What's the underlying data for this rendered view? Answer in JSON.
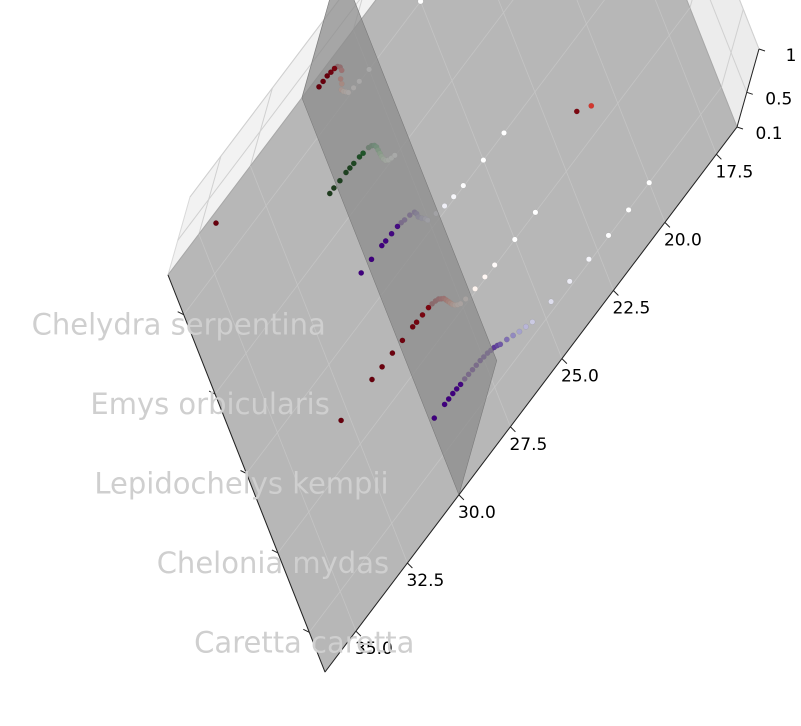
{
  "chart_data": {
    "type": "scatter",
    "projection": "3d",
    "title": "",
    "xlabel": "",
    "ylabel": "",
    "zlabel": "",
    "grid": true,
    "legend": "none",
    "x_ticks": [
      "17.5",
      "20.0",
      "22.5",
      "25.0",
      "27.5",
      "30.0",
      "32.5",
      "35.0"
    ],
    "z_ticks": [
      "0.1",
      "0.5",
      "1"
    ],
    "xlim": [
      16.5,
      36.5
    ],
    "zlim": [
      0.1,
      1.0
    ],
    "species": [
      "Chelydra serpentina",
      "Emys orbicularis",
      "Lepidochelys kempii",
      "Chelonia mydas",
      "Caretta caretta"
    ],
    "reference_plane": {
      "x": 30.0,
      "color": "#8c8c8c"
    },
    "base_plane_color": "#b7b7b7",
    "series": [
      {
        "species": "Chelydra serpentina",
        "cmap": "red",
        "x": [
          36.0,
          31.0,
          30.8,
          30.6,
          30.4,
          30.2,
          30.0,
          29.8,
          29.6,
          29.5,
          29.3,
          29.2,
          29.0,
          28.8,
          28.6,
          28.3,
          28.0,
          27.5,
          25.0,
          24.0,
          22.0,
          20.0,
          17.0
        ],
        "z": [
          1.0,
          1.0,
          1.0,
          1.0,
          0.98,
          0.96,
          0.92,
          0.85,
          0.75,
          0.62,
          0.5,
          0.4,
          0.32,
          0.25,
          0.18,
          0.14,
          0.12,
          0.1,
          0.1,
          0.1,
          0.1,
          0.1,
          0.1
        ]
      },
      {
        "species": "Emys orbicularis",
        "cmap": "green",
        "x": [
          32.0,
          31.8,
          31.5,
          31.2,
          31.0,
          30.8,
          30.5,
          30.3,
          30.0,
          29.8,
          29.6,
          29.4,
          29.2,
          29.0,
          28.8,
          28.6,
          28.4,
          28.2,
          28.0,
          27.8
        ],
        "z": [
          1.0,
          1.0,
          0.99,
          0.99,
          0.98,
          0.97,
          0.95,
          0.93,
          0.9,
          0.86,
          0.8,
          0.72,
          0.62,
          0.52,
          0.42,
          0.33,
          0.25,
          0.19,
          0.15,
          0.12
        ]
      },
      {
        "species": "Lepidochelys kempii",
        "cmap": "purple",
        "x": [
          32.0,
          31.5,
          31.0,
          30.8,
          30.5,
          30.2,
          30.0,
          29.8,
          29.5,
          29.2,
          29.0,
          28.8,
          28.5,
          28.2,
          28.0,
          27.5,
          27.0,
          26.5,
          26.0,
          25.0,
          24.0
        ],
        "z": [
          1.0,
          1.0,
          1.0,
          0.99,
          0.98,
          0.97,
          0.95,
          0.92,
          0.88,
          0.82,
          0.74,
          0.64,
          0.53,
          0.43,
          0.35,
          0.27,
          0.2,
          0.15,
          0.12,
          0.1,
          0.1
        ]
      },
      {
        "species": "Chelonia mydas",
        "cmap": "red",
        "x": [
          34.5,
          33.0,
          32.5,
          32.0,
          31.5,
          31.0,
          30.8,
          30.5,
          30.2,
          30.0,
          29.8,
          29.6,
          29.4,
          29.2,
          29.0,
          28.8,
          28.6,
          28.4,
          28.2,
          28.0,
          27.8,
          27.5,
          27.0,
          26.5,
          26.0,
          25.0,
          24.0,
          23.0,
          22.0
        ],
        "z": [
          1.0,
          1.0,
          0.99,
          0.99,
          0.98,
          0.98,
          0.97,
          0.96,
          0.95,
          0.93,
          0.9,
          0.86,
          0.8,
          0.74,
          0.66,
          0.58,
          0.5,
          0.42,
          0.35,
          0.29,
          0.24,
          0.2,
          0.16,
          0.14,
          0.12,
          0.1,
          0.1,
          0.95,
          0.7
        ]
      },
      {
        "species": "Caretta caretta",
        "cmap": "purple",
        "x": [
          31.5,
          31.0,
          30.8,
          30.6,
          30.4,
          30.2,
          30.0,
          29.8,
          29.6,
          29.4,
          29.2,
          29.0,
          28.8,
          28.6,
          28.4,
          28.2,
          28.0,
          27.6,
          27.2,
          26.8,
          26.4,
          26.0,
          25.0,
          24.0,
          23.0,
          22.0,
          21.0,
          20.0
        ],
        "z": [
          1.0,
          1.0,
          1.0,
          1.0,
          0.99,
          0.98,
          0.98,
          0.97,
          0.96,
          0.95,
          0.94,
          0.92,
          0.9,
          0.87,
          0.84,
          0.8,
          0.75,
          0.68,
          0.6,
          0.52,
          0.45,
          0.38,
          0.3,
          0.22,
          0.16,
          0.12,
          0.1,
          0.1
        ]
      }
    ]
  }
}
